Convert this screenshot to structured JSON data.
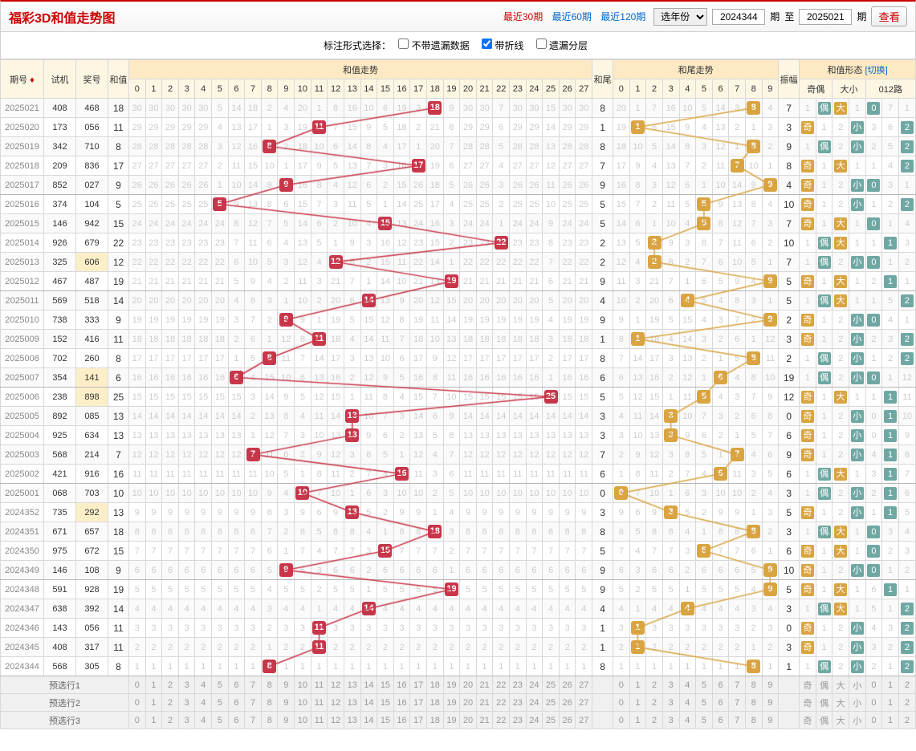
{
  "title": "福彩3D和值走势图",
  "period_links": [
    {
      "label": "最近30期",
      "active": true
    },
    {
      "label": "最近60期",
      "active": false
    },
    {
      "label": "最近120期",
      "active": false
    }
  ],
  "year_select_label": "选年份",
  "from_period": "2024344",
  "to_period": "2025021",
  "period_suffix": "期",
  "to_label": "至",
  "view_button": "查看",
  "options_label": "标注形式选择：",
  "options": [
    {
      "label": "不带遗漏数据",
      "checked": false
    },
    {
      "label": "带折线",
      "checked": true
    },
    {
      "label": "遗漏分层",
      "checked": false
    }
  ],
  "headers": {
    "period": "期号",
    "shiji": "试机",
    "jiang": "奖号",
    "hz": "和值",
    "hz_trend": "和值走势",
    "hw": "和尾",
    "hw_trend": "和尾走势",
    "zf": "振幅",
    "form": "和值形态",
    "switch": "[切换]",
    "jo": "奇偶",
    "dx": "大小",
    "r012": "012路"
  },
  "hz_range": 28,
  "hw_range": 10,
  "colors": {
    "red_ball": "#c8364a",
    "orange_ball": "#d9a441",
    "line_red": "#c8364a",
    "line_orange": "#d9a441",
    "miss": "#cccccc",
    "header_bg": "#fde9c4",
    "odd_row": "#fafafa",
    "highlight": "#fcefc7",
    "tag_odd": "#d9a441",
    "tag_even": "#6fa8a3"
  },
  "rows": [
    {
      "period": "2025021",
      "shiji": "408",
      "jiang": "468",
      "hz": 18,
      "hw": 8,
      "zf": 7,
      "jo": "偶",
      "dx": "大",
      "r012": [
        0,
        7,
        1
      ]
    },
    {
      "period": "2025020",
      "shiji": "173",
      "jiang": "056",
      "hz": 11,
      "hw": 1,
      "zf": 3,
      "jo": "奇",
      "dx": "小",
      "r012": [
        3,
        6,
        2
      ]
    },
    {
      "period": "2025019",
      "shiji": "342",
      "jiang": "710",
      "hz": 8,
      "hw": 8,
      "zf": 9,
      "jo": "偶",
      "dx": "小",
      "r012": [
        2,
        5,
        2
      ]
    },
    {
      "period": "2025018",
      "shiji": "209",
      "jiang": "836",
      "hz": 17,
      "hw": 7,
      "zf": 8,
      "jo": "奇",
      "dx": "大",
      "r012": [
        1,
        4,
        2
      ]
    },
    {
      "period": "2025017",
      "shiji": "852",
      "jiang": "027",
      "hz": 9,
      "hw": 9,
      "zf": 4,
      "jo": "奇",
      "dx": "小",
      "r012": [
        0,
        3,
        1
      ]
    },
    {
      "period": "2025016",
      "shiji": "374",
      "jiang": "104",
      "hz": 5,
      "hw": 5,
      "zf": 10,
      "jo": "奇",
      "dx": "小",
      "r012": [
        1,
        2,
        2
      ]
    },
    {
      "period": "2025015",
      "shiji": "146",
      "jiang": "942",
      "hz": 15,
      "hw": 5,
      "zf": 7,
      "jo": "奇",
      "dx": "大",
      "r012": [
        0,
        1,
        4
      ]
    },
    {
      "period": "2025014",
      "shiji": "926",
      "jiang": "679",
      "hz": 22,
      "hw": 2,
      "zf": 10,
      "jo": "偶",
      "dx": "大",
      "r012": [
        1,
        1,
        3
      ]
    },
    {
      "period": "2025013",
      "shiji": "325",
      "jiang": "606",
      "hz": 12,
      "hw": 2,
      "zf": 7,
      "highlight_jiang": true,
      "jo": "偶",
      "dx": "小",
      "r012": [
        0,
        1,
        2
      ]
    },
    {
      "period": "2025012",
      "shiji": "467",
      "jiang": "487",
      "hz": 19,
      "hw": 9,
      "zf": 5,
      "jo": "奇",
      "dx": "大",
      "r012": [
        2,
        1,
        1
      ]
    },
    {
      "period": "2025011",
      "shiji": "569",
      "jiang": "518",
      "hz": 14,
      "hw": 4,
      "zf": 5,
      "jo": "偶",
      "dx": "大",
      "r012": [
        1,
        5,
        2
      ]
    },
    {
      "period": "2025010",
      "shiji": "738",
      "jiang": "333",
      "hz": 9,
      "hw": 9,
      "zf": 2,
      "jo": "奇",
      "dx": "小",
      "r012": [
        0,
        4,
        1
      ]
    },
    {
      "period": "2025009",
      "shiji": "152",
      "jiang": "416",
      "hz": 11,
      "hw": 1,
      "zf": 3,
      "jo": "奇",
      "dx": "小",
      "r012": [
        2,
        3,
        2
      ]
    },
    {
      "period": "2025008",
      "shiji": "702",
      "jiang": "260",
      "hz": 8,
      "hw": 8,
      "zf": 2,
      "jo": "偶",
      "dx": "小",
      "r012": [
        1,
        2,
        2
      ]
    },
    {
      "period": "2025007",
      "shiji": "354",
      "jiang": "141",
      "hz": 6,
      "hw": 6,
      "zf": 19,
      "highlight_jiang": true,
      "jo": "偶",
      "dx": "小",
      "r012": [
        0,
        1,
        12
      ]
    },
    {
      "period": "2025006",
      "shiji": "238",
      "jiang": "898",
      "hz": 25,
      "hw": 5,
      "zf": 12,
      "highlight_jiang": true,
      "jo": "奇",
      "dx": "大",
      "r012": [
        1,
        7,
        11
      ]
    },
    {
      "period": "2025005",
      "shiji": "892",
      "jiang": "085",
      "hz": 13,
      "hw": 3,
      "zf": 0,
      "jo": "奇",
      "dx": "小",
      "r012": [
        0,
        6,
        10
      ]
    },
    {
      "period": "2025004",
      "shiji": "925",
      "jiang": "634",
      "hz": 13,
      "hw": 3,
      "zf": 6,
      "jo": "奇",
      "dx": "小",
      "r012": [
        0,
        5,
        9
      ]
    },
    {
      "period": "2025003",
      "shiji": "568",
      "jiang": "214",
      "hz": 7,
      "hw": 7,
      "zf": 9,
      "jo": "奇",
      "dx": "小",
      "r012": [
        4,
        1,
        8
      ]
    },
    {
      "period": "2025002",
      "shiji": "421",
      "jiang": "916",
      "hz": 16,
      "hw": 6,
      "zf": 6,
      "jo": "偶",
      "dx": "大",
      "r012": [
        3,
        1,
        7
      ]
    },
    {
      "period": "2025001",
      "shiji": "068",
      "jiang": "703",
      "hz": 10,
      "hw": 0,
      "zf": 3,
      "jo": "偶",
      "dx": "小",
      "r012": [
        2,
        1,
        6
      ]
    },
    {
      "period": "2024352",
      "shiji": "735",
      "jiang": "292",
      "hz": 13,
      "hw": 3,
      "zf": 5,
      "highlight_jiang": true,
      "jo": "奇",
      "dx": "小",
      "r012": [
        1,
        1,
        5
      ]
    },
    {
      "period": "2024351",
      "shiji": "671",
      "jiang": "657",
      "hz": 18,
      "hw": 8,
      "zf": 3,
      "jo": "偶",
      "dx": "大",
      "r012": [
        0,
        3,
        4
      ]
    },
    {
      "period": "2024350",
      "shiji": "975",
      "jiang": "672",
      "hz": 15,
      "hw": 5,
      "zf": 6,
      "jo": "奇",
      "dx": "大",
      "r012": [
        0,
        2,
        3
      ]
    },
    {
      "period": "2024349",
      "shiji": "146",
      "jiang": "108",
      "hz": 9,
      "hw": 9,
      "zf": 10,
      "jo": "奇",
      "dx": "小",
      "r012": [
        0,
        1,
        2
      ]
    },
    {
      "period": "2024348",
      "shiji": "591",
      "jiang": "928",
      "hz": 19,
      "hw": 9,
      "zf": 5,
      "jo": "奇",
      "dx": "大",
      "r012": [
        6,
        1,
        1
      ]
    },
    {
      "period": "2024347",
      "shiji": "638",
      "jiang": "392",
      "hz": 14,
      "hw": 4,
      "zf": 3,
      "jo": "偶",
      "dx": "大",
      "r012": [
        5,
        1,
        1
      ]
    },
    {
      "period": "2024346",
      "shiji": "143",
      "jiang": "056",
      "hz": 11,
      "hw": 1,
      "zf": 0,
      "jo": "奇",
      "dx": "小",
      "r012": [
        4,
        3,
        2
      ]
    },
    {
      "period": "2024345",
      "shiji": "408",
      "jiang": "317",
      "hz": 11,
      "hw": 1,
      "zf": 3,
      "jo": "奇",
      "dx": "小",
      "r012": [
        3,
        2,
        2
      ]
    },
    {
      "period": "2024344",
      "shiji": "568",
      "jiang": "305",
      "hz": 8,
      "hw": 8,
      "zf": 1,
      "jo": "偶",
      "dx": "小",
      "r012": [
        2,
        1,
        2
      ]
    }
  ],
  "preselect_labels": [
    "预选行1",
    "预选行2",
    "预选行3"
  ],
  "preselect_form": [
    "奇",
    "偶",
    "大",
    "小",
    "0",
    "1",
    "2"
  ]
}
